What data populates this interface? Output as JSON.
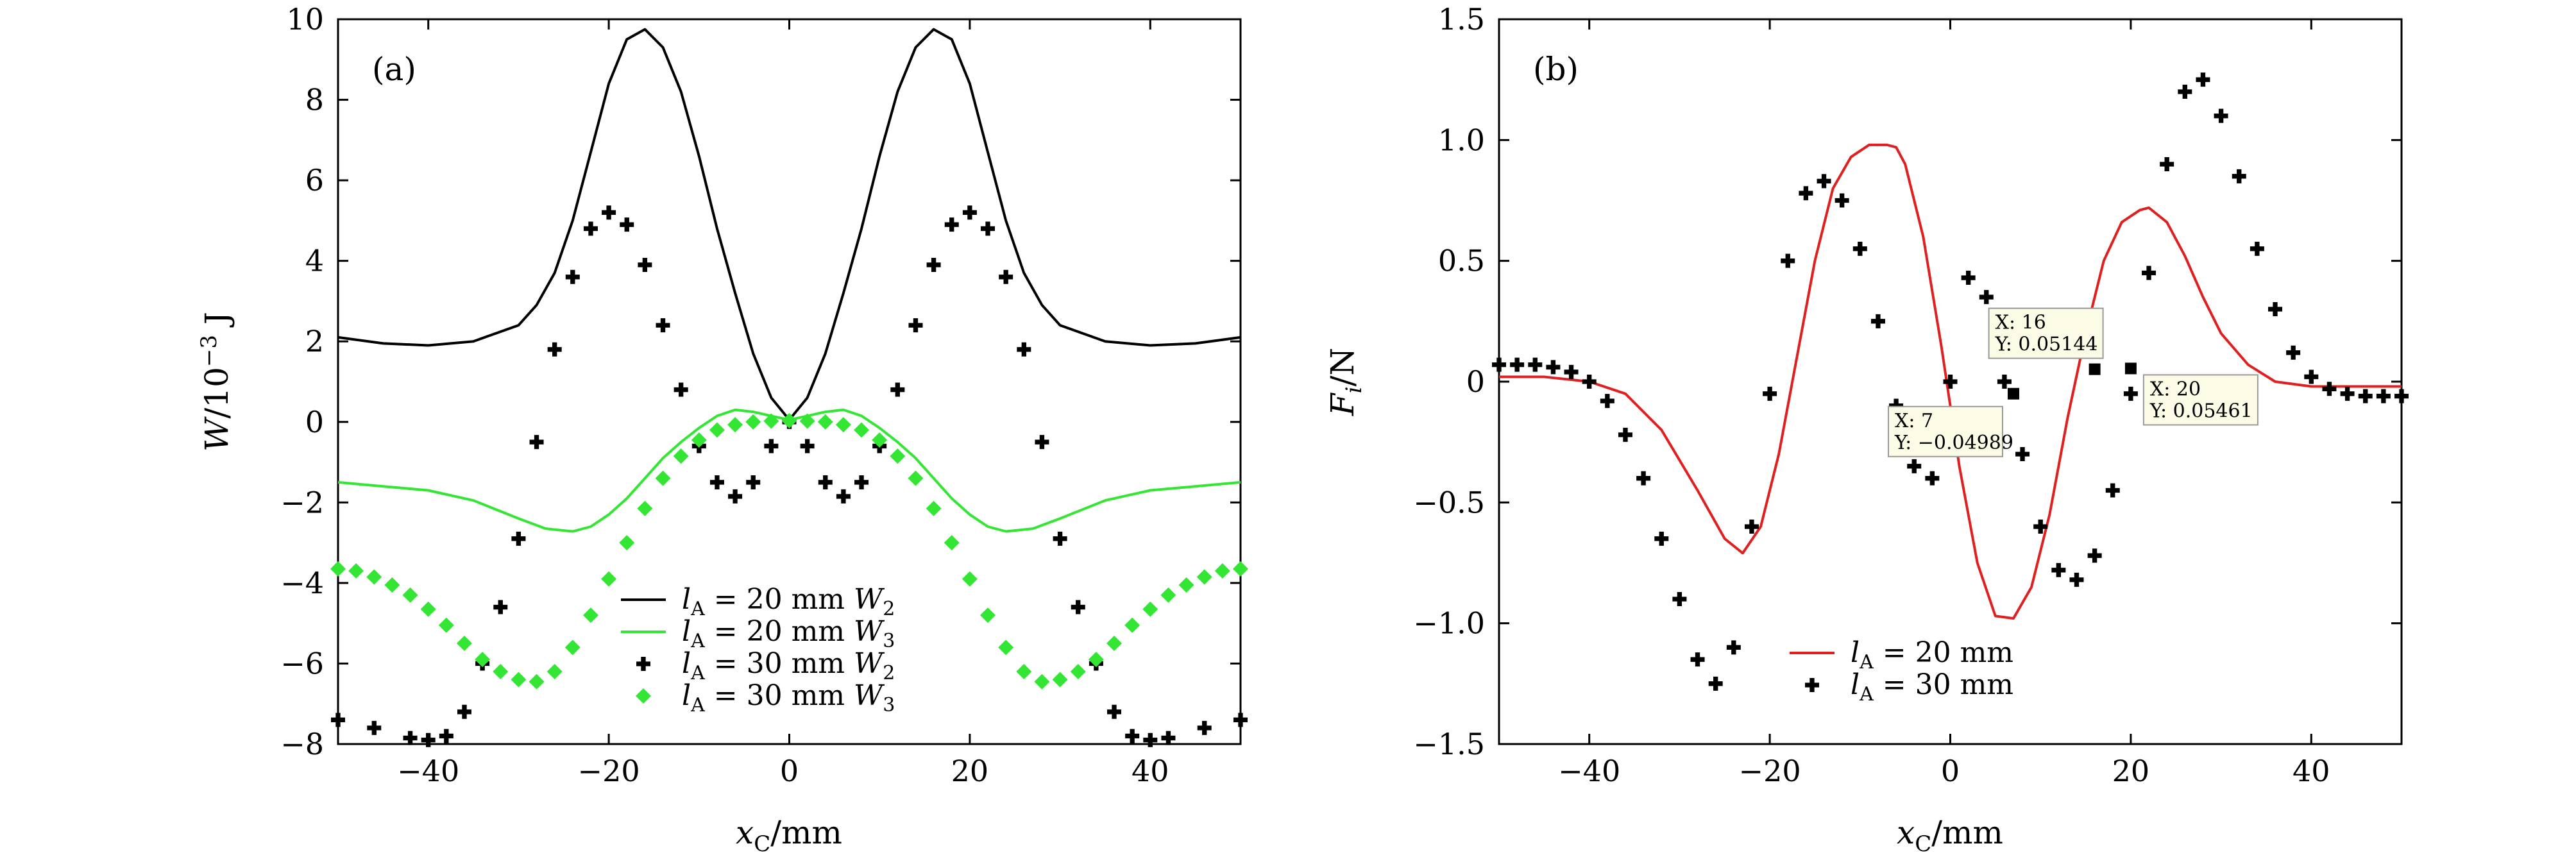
{
  "colors": {
    "black": "#000000",
    "green": "#33e633",
    "red": "#e02020",
    "tip_bg": "#fbfbe6"
  },
  "chart_data": [
    {
      "type": "line",
      "panel": "(a)",
      "xlabel": "x_C/mm",
      "ylabel": "W/10^-3 J",
      "xlim": [
        -50,
        50
      ],
      "ylim": [
        -8,
        10
      ],
      "xticks": [
        -40,
        -20,
        0,
        20,
        40
      ],
      "yticks": [
        -8,
        -6,
        -4,
        -2,
        0,
        2,
        4,
        6,
        8,
        10
      ],
      "xtick_labels": [
        "−40",
        "−20",
        "0",
        "20",
        "40"
      ],
      "ytick_labels": [
        "−8",
        "−6",
        "−4",
        "−2",
        "0",
        "2",
        "4",
        "6",
        "8",
        "10"
      ],
      "legend_position": "lower-center",
      "series": [
        {
          "name": "lA = 20 mm W2",
          "style": "line",
          "color": "#000000",
          "x": [
            -50,
            -45,
            -40,
            -35,
            -30,
            -28,
            -26,
            -24,
            -22,
            -20,
            -18,
            -16,
            -14,
            -12,
            -10,
            -8,
            -6,
            -4,
            -2,
            0,
            2,
            4,
            6,
            8,
            10,
            12,
            14,
            16,
            18,
            20,
            22,
            24,
            26,
            28,
            30,
            35,
            40,
            45,
            50
          ],
          "y": [
            2.1,
            1.95,
            1.9,
            2.0,
            2.4,
            2.9,
            3.7,
            5.0,
            6.7,
            8.4,
            9.5,
            9.75,
            9.3,
            8.2,
            6.6,
            4.8,
            3.2,
            1.7,
            0.6,
            0.05,
            0.6,
            1.7,
            3.2,
            4.8,
            6.6,
            8.2,
            9.3,
            9.75,
            9.5,
            8.4,
            6.7,
            5.0,
            3.7,
            2.9,
            2.4,
            2.0,
            1.9,
            1.95,
            2.1
          ]
        },
        {
          "name": "lA = 20 mm W3",
          "style": "line",
          "color": "#33e633",
          "x": [
            -50,
            -45,
            -40,
            -35,
            -30,
            -27,
            -24,
            -22,
            -20,
            -18,
            -16,
            -14,
            -12,
            -10,
            -8,
            -6,
            -4,
            -2,
            0,
            2,
            4,
            6,
            8,
            10,
            12,
            14,
            16,
            18,
            20,
            22,
            24,
            27,
            30,
            35,
            40,
            45,
            50
          ],
          "y": [
            -1.5,
            -1.6,
            -1.7,
            -1.95,
            -2.4,
            -2.65,
            -2.72,
            -2.6,
            -2.3,
            -1.9,
            -1.4,
            -0.9,
            -0.5,
            -0.15,
            0.15,
            0.3,
            0.25,
            0.15,
            0.05,
            0.15,
            0.25,
            0.3,
            0.15,
            -0.15,
            -0.5,
            -0.9,
            -1.4,
            -1.9,
            -2.3,
            -2.6,
            -2.72,
            -2.65,
            -2.4,
            -1.95,
            -1.7,
            -1.6,
            -1.5
          ]
        },
        {
          "name": "lA = 30 mm W2",
          "style": "marker",
          "color": "#000000",
          "x": [
            -50,
            -46,
            -42,
            -40,
            -38,
            -36,
            -34,
            -32,
            -30,
            -28,
            -26,
            -24,
            -22,
            -20,
            -18,
            -16,
            -14,
            -12,
            -10,
            -8,
            -6,
            -4,
            -2,
            0,
            2,
            4,
            6,
            8,
            10,
            12,
            14,
            16,
            18,
            20,
            22,
            24,
            26,
            28,
            30,
            32,
            34,
            36,
            38,
            40,
            42,
            46,
            50
          ],
          "y": [
            -7.4,
            -7.6,
            -7.85,
            -7.9,
            -7.8,
            -7.2,
            -6.0,
            -4.6,
            -2.9,
            -0.5,
            1.8,
            3.6,
            4.8,
            5.2,
            4.9,
            3.9,
            2.4,
            0.8,
            -0.6,
            -1.5,
            -1.85,
            -1.5,
            -0.6,
            0.0,
            -0.6,
            -1.5,
            -1.85,
            -1.5,
            -0.6,
            0.8,
            2.4,
            3.9,
            4.9,
            5.2,
            4.8,
            3.6,
            1.8,
            -0.5,
            -2.9,
            -4.6,
            -6.0,
            -7.2,
            -7.8,
            -7.9,
            -7.85,
            -7.6,
            -7.4
          ]
        },
        {
          "name": "lA = 30 mm W3",
          "style": "marker",
          "color": "#33e633",
          "x": [
            -50,
            -48,
            -46,
            -44,
            -42,
            -40,
            -38,
            -36,
            -34,
            -32,
            -30,
            -28,
            -26,
            -24,
            -22,
            -20,
            -18,
            -16,
            -14,
            -12,
            -10,
            -8,
            -6,
            -4,
            -2,
            0,
            2,
            4,
            6,
            8,
            10,
            12,
            14,
            16,
            18,
            20,
            22,
            24,
            26,
            28,
            30,
            32,
            34,
            36,
            38,
            40,
            42,
            44,
            46,
            48,
            50
          ],
          "y": [
            -3.65,
            -3.7,
            -3.85,
            -4.05,
            -4.3,
            -4.65,
            -5.05,
            -5.5,
            -5.9,
            -6.2,
            -6.4,
            -6.45,
            -6.2,
            -5.6,
            -4.8,
            -3.9,
            -3.0,
            -2.15,
            -1.4,
            -0.85,
            -0.45,
            -0.2,
            -0.07,
            0.0,
            0.02,
            0.03,
            0.02,
            0.0,
            -0.07,
            -0.2,
            -0.45,
            -0.85,
            -1.4,
            -2.15,
            -3.0,
            -3.9,
            -4.8,
            -5.6,
            -6.2,
            -6.45,
            -6.4,
            -6.2,
            -5.9,
            -5.5,
            -5.05,
            -4.65,
            -4.3,
            -4.05,
            -3.85,
            -3.7,
            -3.65
          ]
        }
      ],
      "legend": [
        {
          "prefix": "l",
          "sub": "A",
          "text": " = 20 mm ",
          "var": "W",
          "varsub": "2"
        },
        {
          "prefix": "l",
          "sub": "A",
          "text": " = 20 mm ",
          "var": "W",
          "varsub": "3"
        },
        {
          "prefix": "l",
          "sub": "A",
          "text": " = 30 mm ",
          "var": "W",
          "varsub": "2"
        },
        {
          "prefix": "l",
          "sub": "A",
          "text": " = 30 mm ",
          "var": "W",
          "varsub": "3"
        }
      ]
    },
    {
      "type": "line",
      "panel": "(b)",
      "xlabel": "x_C/mm",
      "ylabel": "F_i/N",
      "xlim": [
        -50,
        50
      ],
      "ylim": [
        -1.5,
        1.5
      ],
      "xticks": [
        -40,
        -20,
        0,
        20,
        40
      ],
      "yticks": [
        -1.5,
        -1.0,
        -0.5,
        0,
        0.5,
        1.0,
        1.5
      ],
      "xtick_labels": [
        "−40",
        "−20",
        "0",
        "20",
        "40"
      ],
      "ytick_labels": [
        "−1.5",
        "−1.0",
        "−0.5",
        "0",
        "0.5",
        "1.0",
        "1.5"
      ],
      "legend_position": "lower-center",
      "series": [
        {
          "name": "lA = 20 mm",
          "style": "line",
          "color": "#e02020",
          "x": [
            -50,
            -45,
            -40,
            -36,
            -32,
            -28,
            -25,
            -23,
            -21,
            -19,
            -17,
            -15,
            -13,
            -11,
            -9,
            -7,
            -6,
            -5,
            -3,
            -1,
            1,
            3,
            5,
            7,
            9,
            11,
            13,
            15,
            17,
            19,
            21,
            22,
            24,
            26,
            28,
            30,
            33,
            36,
            40,
            45,
            50
          ],
          "y": [
            0.02,
            0.02,
            0.0,
            -0.05,
            -0.2,
            -0.45,
            -0.65,
            -0.71,
            -0.6,
            -0.3,
            0.1,
            0.5,
            0.8,
            0.93,
            0.98,
            0.98,
            0.97,
            0.9,
            0.6,
            0.15,
            -0.35,
            -0.75,
            -0.97,
            -0.98,
            -0.85,
            -0.55,
            -0.15,
            0.2,
            0.5,
            0.66,
            0.71,
            0.72,
            0.66,
            0.52,
            0.35,
            0.2,
            0.07,
            0.0,
            -0.02,
            -0.02,
            -0.02
          ]
        },
        {
          "name": "lA = 30 mm",
          "style": "marker",
          "color": "#000000",
          "x": [
            -50,
            -48,
            -46,
            -44,
            -42,
            -40,
            -38,
            -36,
            -34,
            -32,
            -30,
            -28,
            -26,
            -24,
            -22,
            -20,
            -18,
            -16,
            -14,
            -12,
            -10,
            -8,
            -6,
            -4,
            -2,
            0,
            2,
            4,
            6,
            8,
            10,
            12,
            14,
            16,
            18,
            20,
            22,
            24,
            26,
            28,
            30,
            32,
            34,
            36,
            38,
            40,
            42,
            44,
            46,
            48,
            50
          ],
          "y": [
            0.07,
            0.07,
            0.07,
            0.06,
            0.04,
            0.0,
            -0.08,
            -0.22,
            -0.4,
            -0.65,
            -0.9,
            -1.15,
            -1.25,
            -1.1,
            -0.6,
            -0.05,
            0.5,
            0.78,
            0.83,
            0.75,
            0.55,
            0.25,
            -0.1,
            -0.35,
            -0.4,
            0.0,
            0.43,
            0.35,
            0.0,
            -0.3,
            -0.6,
            -0.78,
            -0.82,
            -0.72,
            -0.45,
            -0.05,
            0.45,
            0.9,
            1.2,
            1.25,
            1.1,
            0.85,
            0.55,
            0.3,
            0.12,
            0.02,
            -0.03,
            -0.05,
            -0.06,
            -0.06,
            -0.06
          ]
        }
      ],
      "legend": [
        {
          "prefix": "l",
          "sub": "A",
          "text": " = 20 mm"
        },
        {
          "prefix": "l",
          "sub": "A",
          "text": " = 30 mm"
        }
      ],
      "datatips": [
        {
          "x": 7,
          "y": -0.04989,
          "xlabel": "X: 7",
          "ylabel": "Y: −0.04989"
        },
        {
          "x": 16,
          "y": 0.05144,
          "xlabel": "X: 16",
          "ylabel": "Y: 0.05144"
        },
        {
          "x": 20,
          "y": 0.05461,
          "xlabel": "X: 20",
          "ylabel": "Y: 0.05461"
        }
      ]
    }
  ]
}
